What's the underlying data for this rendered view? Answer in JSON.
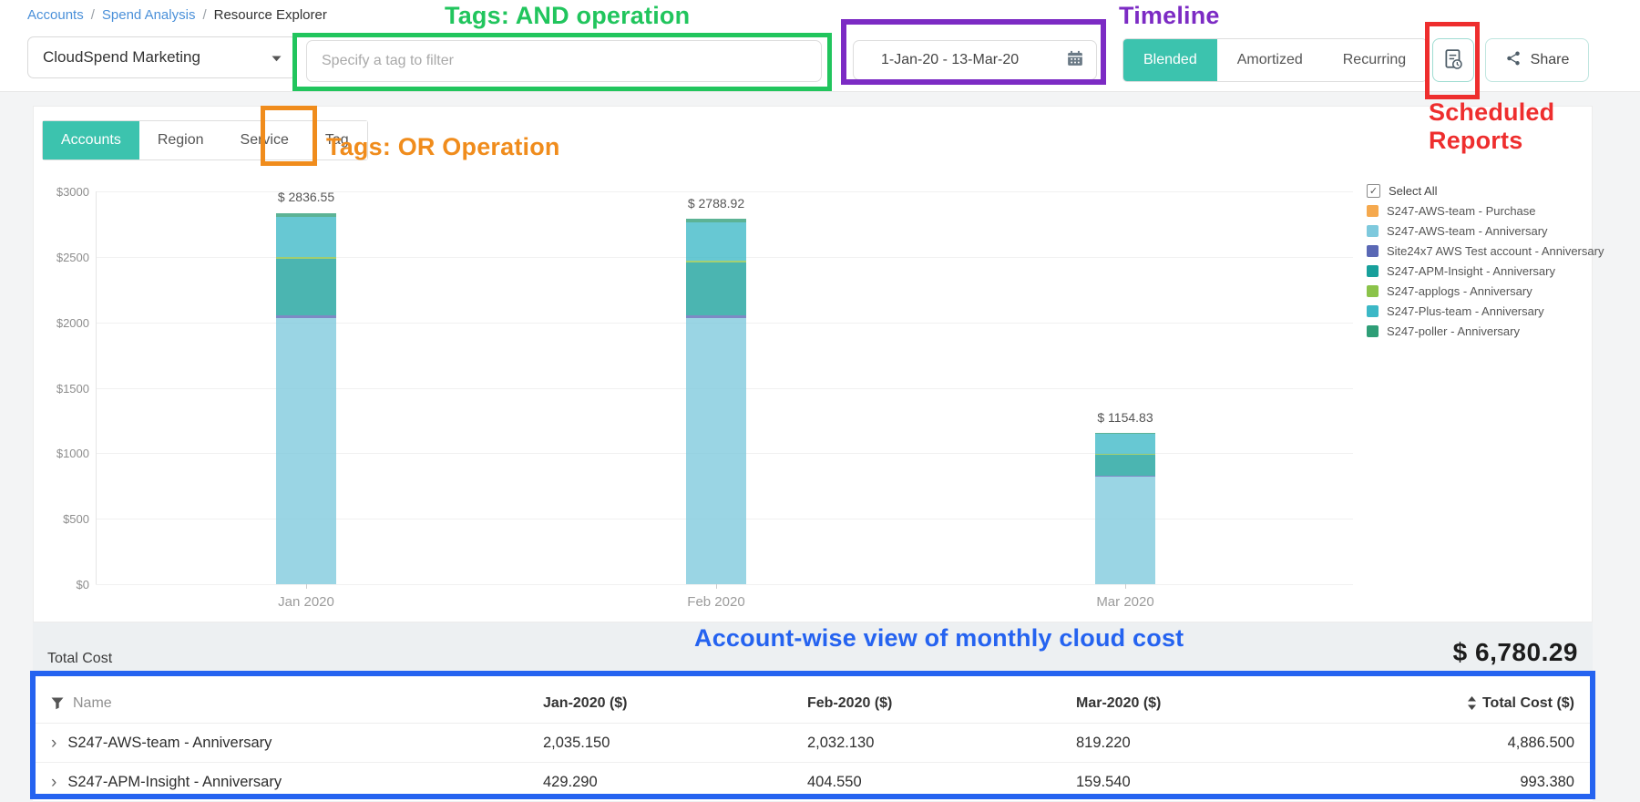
{
  "breadcrumb": {
    "separator": "/",
    "items": [
      {
        "label": "Accounts",
        "link": true
      },
      {
        "label": "Spend Analysis",
        "link": true
      },
      {
        "label": "Resource Explorer",
        "link": false
      }
    ]
  },
  "toolbar": {
    "account_dropdown": {
      "value": "CloudSpend Marketing"
    },
    "tag_filter": {
      "placeholder": "Specify a tag to filter"
    },
    "date_range": {
      "value": "1-Jan-20 - 13-Mar-20"
    },
    "cost_modes": [
      {
        "label": "Blended",
        "selected": true
      },
      {
        "label": "Amortized",
        "selected": false
      },
      {
        "label": "Recurring",
        "selected": false
      }
    ],
    "share_label": "Share"
  },
  "tabs": [
    {
      "label": "Accounts",
      "selected": true
    },
    {
      "label": "Region",
      "selected": false
    },
    {
      "label": "Service",
      "selected": false
    },
    {
      "label": "Tag",
      "selected": false
    }
  ],
  "chart_data": {
    "type": "bar",
    "stacked": true,
    "categories": [
      "Jan 2020",
      "Feb 2020",
      "Mar 2020"
    ],
    "series": [
      {
        "name": "S247-AWS-team - Purchase",
        "color": "#F5A94E",
        "values": [
          0,
          0,
          0
        ]
      },
      {
        "name": "S247-AWS-team - Anniversary",
        "color": "#7EC9DD",
        "values": [
          2035.15,
          2032.13,
          819.22
        ]
      },
      {
        "name": "Site24x7 AWS Test account - Anniversary",
        "color": "#5A68B5",
        "values": [
          20,
          20,
          12
        ]
      },
      {
        "name": "S247-APM-Insight - Anniversary",
        "color": "#18A09B",
        "values": [
          429.29,
          404.55,
          159.54
        ]
      },
      {
        "name": "S247-applogs - Anniversary",
        "color": "#8BC34A",
        "values": [
          14,
          15,
          6
        ]
      },
      {
        "name": "S247-Plus-team - Anniversary",
        "color": "#3CB8C6",
        "values": [
          310,
          290,
          150
        ]
      },
      {
        "name": "S247-poller - Anniversary",
        "color": "#2E9E77",
        "values": [
          28.11,
          27.24,
          8.07
        ]
      }
    ],
    "bar_total_labels": [
      "$ 2836.55",
      "$ 2788.92",
      "$ 1154.83"
    ],
    "y_ticks": [
      "$3000",
      "$2500",
      "$2000",
      "$1500",
      "$1000",
      "$500",
      "$0"
    ],
    "ylim": [
      0,
      3000
    ],
    "grid": true,
    "legend_position": "right",
    "legend_select_all": "Select All"
  },
  "summary": {
    "label": "Total Cost",
    "value": "$ 6,780.29"
  },
  "table": {
    "columns": [
      {
        "label": "Name",
        "icon": "filter"
      },
      {
        "label": "Jan-2020 ($)"
      },
      {
        "label": "Feb-2020 ($)"
      },
      {
        "label": "Mar-2020 ($)"
      },
      {
        "label": "Total Cost ($)",
        "icon": "sort"
      }
    ],
    "rows": [
      {
        "name": "S247-AWS-team - Anniversary",
        "values": [
          "2,035.150",
          "2,032.130",
          "819.220",
          "4,886.500"
        ]
      },
      {
        "name": "S247-APM-Insight - Anniversary",
        "values": [
          "429.290",
          "404.550",
          "159.540",
          "993.380"
        ]
      }
    ]
  },
  "annotations": {
    "tags_and": "Tags: AND operation",
    "timeline": "Timeline",
    "scheduled_reports": "Scheduled Reports",
    "tags_or": "Tags: OR Operation",
    "account_view": "Account-wise view of monthly cloud cost",
    "colors": {
      "green": "#21C55D",
      "purple": "#7C2BC4",
      "red": "#EE2E2E",
      "orange": "#F08C1C",
      "blue": "#2563F0"
    }
  },
  "colors": {
    "accent_teal": "#3CC3AE",
    "breadcrumb_link_blue": "#4A90D9",
    "total_bar_bg": "#EDF0F2"
  }
}
